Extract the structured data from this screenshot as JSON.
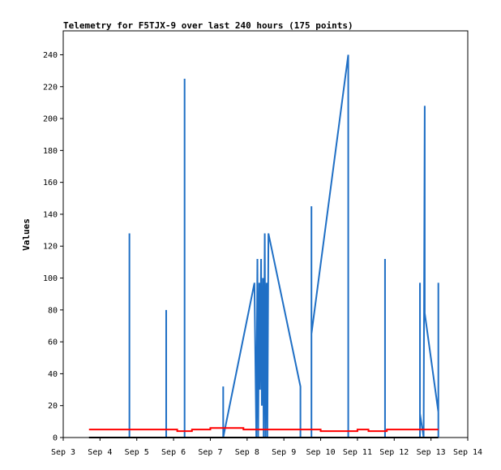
{
  "chart_data": {
    "type": "line",
    "title": "Telemetry for F5TJX-9 over last 240 hours (175 points)",
    "xlabel": "",
    "ylabel": "Values",
    "x_unit": "days",
    "xlim": [
      3,
      14
    ],
    "ylim": [
      0,
      255
    ],
    "x_ticks": [
      3,
      4,
      5,
      6,
      7,
      8,
      9,
      10,
      11,
      12,
      13,
      14
    ],
    "x_tick_labels": [
      "Sep 3",
      "Sep 4",
      "Sep 5",
      "Sep 6",
      "Sep 7",
      "Sep 8",
      "Sep 9",
      "Sep 10",
      "Sep 11",
      "Sep 12",
      "Sep 13",
      "Sep 14"
    ],
    "y_ticks": [
      0,
      20,
      40,
      60,
      80,
      100,
      120,
      140,
      160,
      180,
      200,
      220,
      240
    ],
    "grid": false,
    "series": [
      {
        "color": "#1f6fc5",
        "points": [
          [
            4.7,
            0
          ],
          [
            4.8,
            0
          ],
          [
            4.8,
            128
          ],
          [
            4.8,
            0
          ],
          [
            5.8,
            0
          ],
          [
            5.8,
            80
          ],
          [
            5.8,
            0
          ],
          [
            6.3,
            0
          ],
          [
            6.3,
            225
          ],
          [
            6.3,
            0
          ],
          [
            7.35,
            0
          ],
          [
            7.35,
            32
          ],
          [
            7.35,
            0
          ],
          [
            8.2,
            97
          ],
          [
            8.25,
            0
          ],
          [
            8.28,
            112
          ],
          [
            8.3,
            0
          ],
          [
            8.33,
            97
          ],
          [
            8.35,
            30
          ],
          [
            8.38,
            112
          ],
          [
            8.4,
            20
          ],
          [
            8.43,
            100
          ],
          [
            8.45,
            0
          ],
          [
            8.48,
            128
          ],
          [
            8.5,
            0
          ],
          [
            8.53,
            97
          ],
          [
            8.55,
            0
          ],
          [
            8.58,
            128
          ],
          [
            9.45,
            32
          ],
          [
            9.45,
            0
          ],
          [
            9.75,
            0
          ],
          [
            9.75,
            145
          ],
          [
            9.75,
            65
          ],
          [
            10.75,
            240
          ],
          [
            10.75,
            0
          ],
          [
            11.75,
            0
          ],
          [
            11.75,
            112
          ],
          [
            11.75,
            0
          ],
          [
            12.7,
            0
          ],
          [
            12.7,
            97
          ],
          [
            12.7,
            15
          ],
          [
            12.8,
            0
          ],
          [
            12.83,
            208
          ],
          [
            12.83,
            78
          ],
          [
            13.2,
            16
          ],
          [
            13.2,
            97
          ],
          [
            13.2,
            0
          ]
        ]
      },
      {
        "color": "#ff0000",
        "points": [
          [
            3.7,
            5
          ],
          [
            6.1,
            5
          ],
          [
            6.1,
            4
          ],
          [
            6.5,
            4
          ],
          [
            6.5,
            5
          ],
          [
            7.0,
            5
          ],
          [
            7.0,
            6
          ],
          [
            7.9,
            6
          ],
          [
            7.9,
            5
          ],
          [
            10.0,
            5
          ],
          [
            10.0,
            4
          ],
          [
            11.0,
            4
          ],
          [
            11.0,
            5
          ],
          [
            11.3,
            5
          ],
          [
            11.3,
            4
          ],
          [
            11.8,
            4
          ],
          [
            11.8,
            5
          ],
          [
            13.2,
            5
          ]
        ]
      },
      {
        "color": "#000000",
        "points": [
          [
            3.7,
            0
          ],
          [
            13.2,
            0
          ]
        ]
      }
    ]
  }
}
